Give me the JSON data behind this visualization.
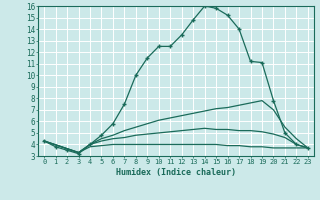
{
  "xlabel": "Humidex (Indice chaleur)",
  "ylabel": "",
  "xlim": [
    -0.5,
    23.5
  ],
  "ylim": [
    3,
    16
  ],
  "yticks": [
    3,
    4,
    5,
    6,
    7,
    8,
    9,
    10,
    11,
    12,
    13,
    14,
    15,
    16
  ],
  "xticks": [
    0,
    1,
    2,
    3,
    4,
    5,
    6,
    7,
    8,
    9,
    10,
    11,
    12,
    13,
    14,
    15,
    16,
    17,
    18,
    19,
    20,
    21,
    22,
    23
  ],
  "xtick_labels": [
    "0",
    "1",
    "2",
    "3",
    "4",
    "5",
    "6",
    "7",
    "8",
    "9",
    "10",
    "11",
    "12",
    "13",
    "14",
    "15",
    "16",
    "17",
    "18",
    "19",
    "20",
    "21",
    "22",
    "23"
  ],
  "bg_color": "#cce9e9",
  "grid_color": "#ffffff",
  "line_color": "#1a6b5a",
  "lines": [
    {
      "x": [
        0,
        1,
        2,
        3,
        4,
        5,
        6,
        7,
        8,
        9,
        10,
        11,
        12,
        13,
        14,
        15,
        16,
        17,
        18,
        19,
        20,
        21,
        22,
        23
      ],
      "y": [
        4.3,
        3.8,
        3.5,
        3.2,
        4.0,
        4.8,
        5.8,
        7.5,
        10.0,
        11.5,
        12.5,
        12.5,
        13.5,
        14.8,
        16.0,
        15.8,
        15.2,
        14.0,
        11.2,
        11.1,
        7.8,
        5.0,
        4.0,
        3.7
      ],
      "marker": "+"
    },
    {
      "x": [
        0,
        3,
        4,
        5,
        6,
        7,
        8,
        9,
        10,
        11,
        12,
        13,
        14,
        15,
        16,
        17,
        18,
        19,
        20,
        21,
        22,
        23
      ],
      "y": [
        4.3,
        3.3,
        4.0,
        4.5,
        4.8,
        5.2,
        5.5,
        5.8,
        6.1,
        6.3,
        6.5,
        6.7,
        6.9,
        7.1,
        7.2,
        7.4,
        7.6,
        7.8,
        7.0,
        5.5,
        4.5,
        3.7
      ],
      "marker": null
    },
    {
      "x": [
        0,
        3,
        4,
        5,
        6,
        7,
        8,
        9,
        10,
        11,
        12,
        13,
        14,
        15,
        16,
        17,
        18,
        19,
        20,
        21,
        22,
        23
      ],
      "y": [
        4.3,
        3.3,
        4.0,
        4.3,
        4.5,
        4.6,
        4.8,
        4.9,
        5.0,
        5.1,
        5.2,
        5.3,
        5.4,
        5.3,
        5.3,
        5.2,
        5.2,
        5.1,
        4.9,
        4.6,
        4.0,
        3.7
      ],
      "marker": null
    },
    {
      "x": [
        0,
        3,
        4,
        5,
        6,
        7,
        8,
        9,
        10,
        11,
        12,
        13,
        14,
        15,
        16,
        17,
        18,
        19,
        20,
        21,
        22,
        23
      ],
      "y": [
        4.3,
        3.3,
        3.8,
        3.9,
        4.0,
        4.0,
        4.0,
        4.0,
        4.0,
        4.0,
        4.0,
        4.0,
        4.0,
        4.0,
        3.9,
        3.9,
        3.8,
        3.8,
        3.7,
        3.7,
        3.7,
        3.7
      ],
      "marker": null
    }
  ]
}
